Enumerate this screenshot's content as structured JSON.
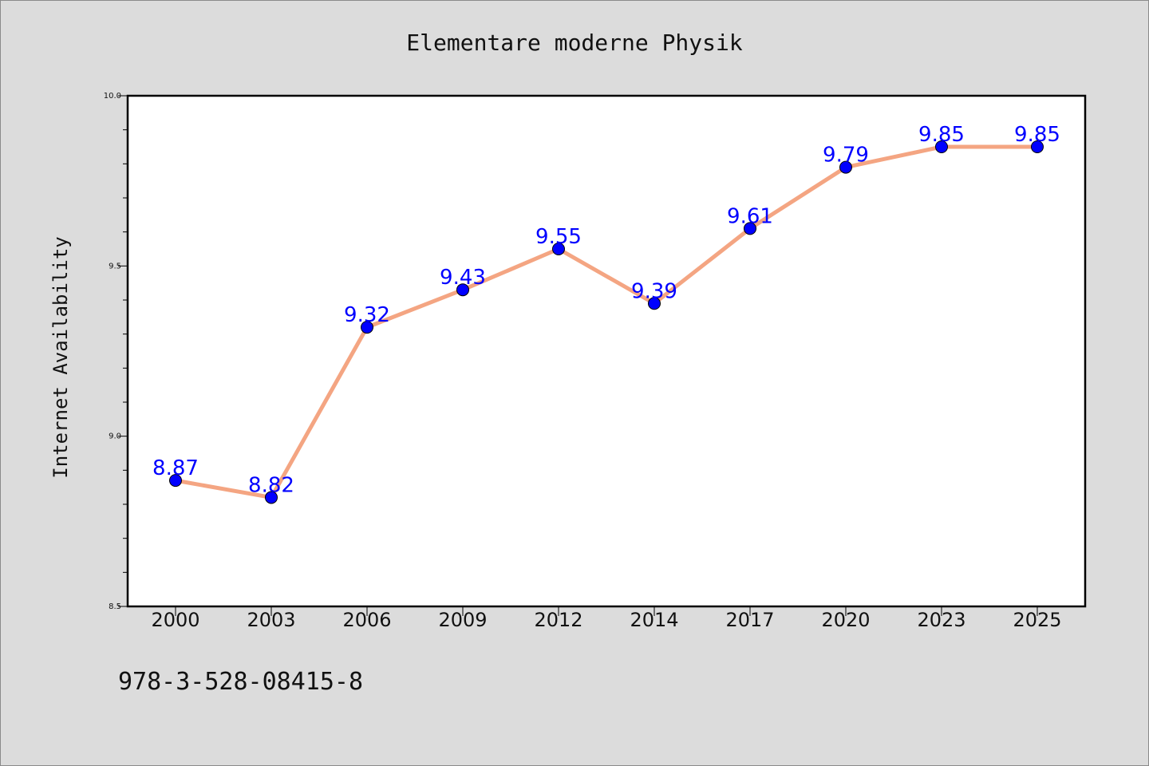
{
  "chart_data": {
    "type": "line",
    "title": "Elementare moderne Physik",
    "xlabel": "",
    "ylabel": "Internet Availability",
    "categories": [
      "2000",
      "2003",
      "2006",
      "2009",
      "2012",
      "2014",
      "2017",
      "2020",
      "2023",
      "2025"
    ],
    "series": [
      {
        "values": [
          8.87,
          8.82,
          9.32,
          9.43,
          9.55,
          9.39,
          9.61,
          9.79,
          9.85,
          9.85
        ]
      }
    ],
    "ylim": [
      8.5,
      10.0
    ],
    "yticks": [
      "8.5",
      "9.0",
      "9.5",
      "10.0"
    ],
    "data_labels": [
      "8.87",
      "8.82",
      "9.32",
      "9.43",
      "9.55",
      "9.39",
      "9.61",
      "9.79",
      "9.85",
      "9.85"
    ],
    "grid": false,
    "legend": "none",
    "colors": {
      "line": "#f4a582",
      "marker": "#0000ff",
      "label": "#0000ff",
      "plot_background": "#ffffff",
      "figure_background": "#dcdcdc"
    }
  },
  "footer": {
    "isbn": "978-3-528-08415-8"
  }
}
